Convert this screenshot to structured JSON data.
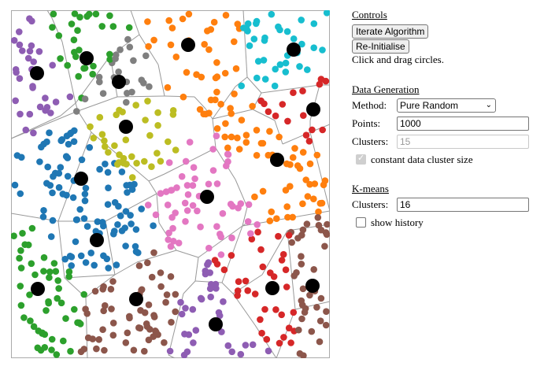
{
  "controls": {
    "title": "Controls",
    "iterate_label": "Iterate Algorithm",
    "reinit_label": "Re-Initialise",
    "hint": "Click and drag circles."
  },
  "data_generation": {
    "title": "Data Generation",
    "method_label": "Method:",
    "method_value": "Pure Random",
    "points_label": "Points:",
    "points_value": "1000",
    "clusters_label": "Clusters:",
    "clusters_value": "15",
    "constant_size_label": "constant data cluster size",
    "constant_size_checked": true
  },
  "kmeans": {
    "title": "K-means",
    "clusters_label": "Clusters:",
    "clusters_value": "16",
    "show_history_label": "show history",
    "show_history_checked": false
  },
  "plot": {
    "cluster_colors": [
      "#8e5db3",
      "#2ca02c",
      "#7f7f7f",
      "#ff7f0e",
      "#17becf",
      "#d62728",
      "#bcbd22",
      "#1f77b4",
      "#e377c2",
      "#8c564b"
    ],
    "centroid_color": "#000000",
    "boundary_color": "#999999"
  }
}
